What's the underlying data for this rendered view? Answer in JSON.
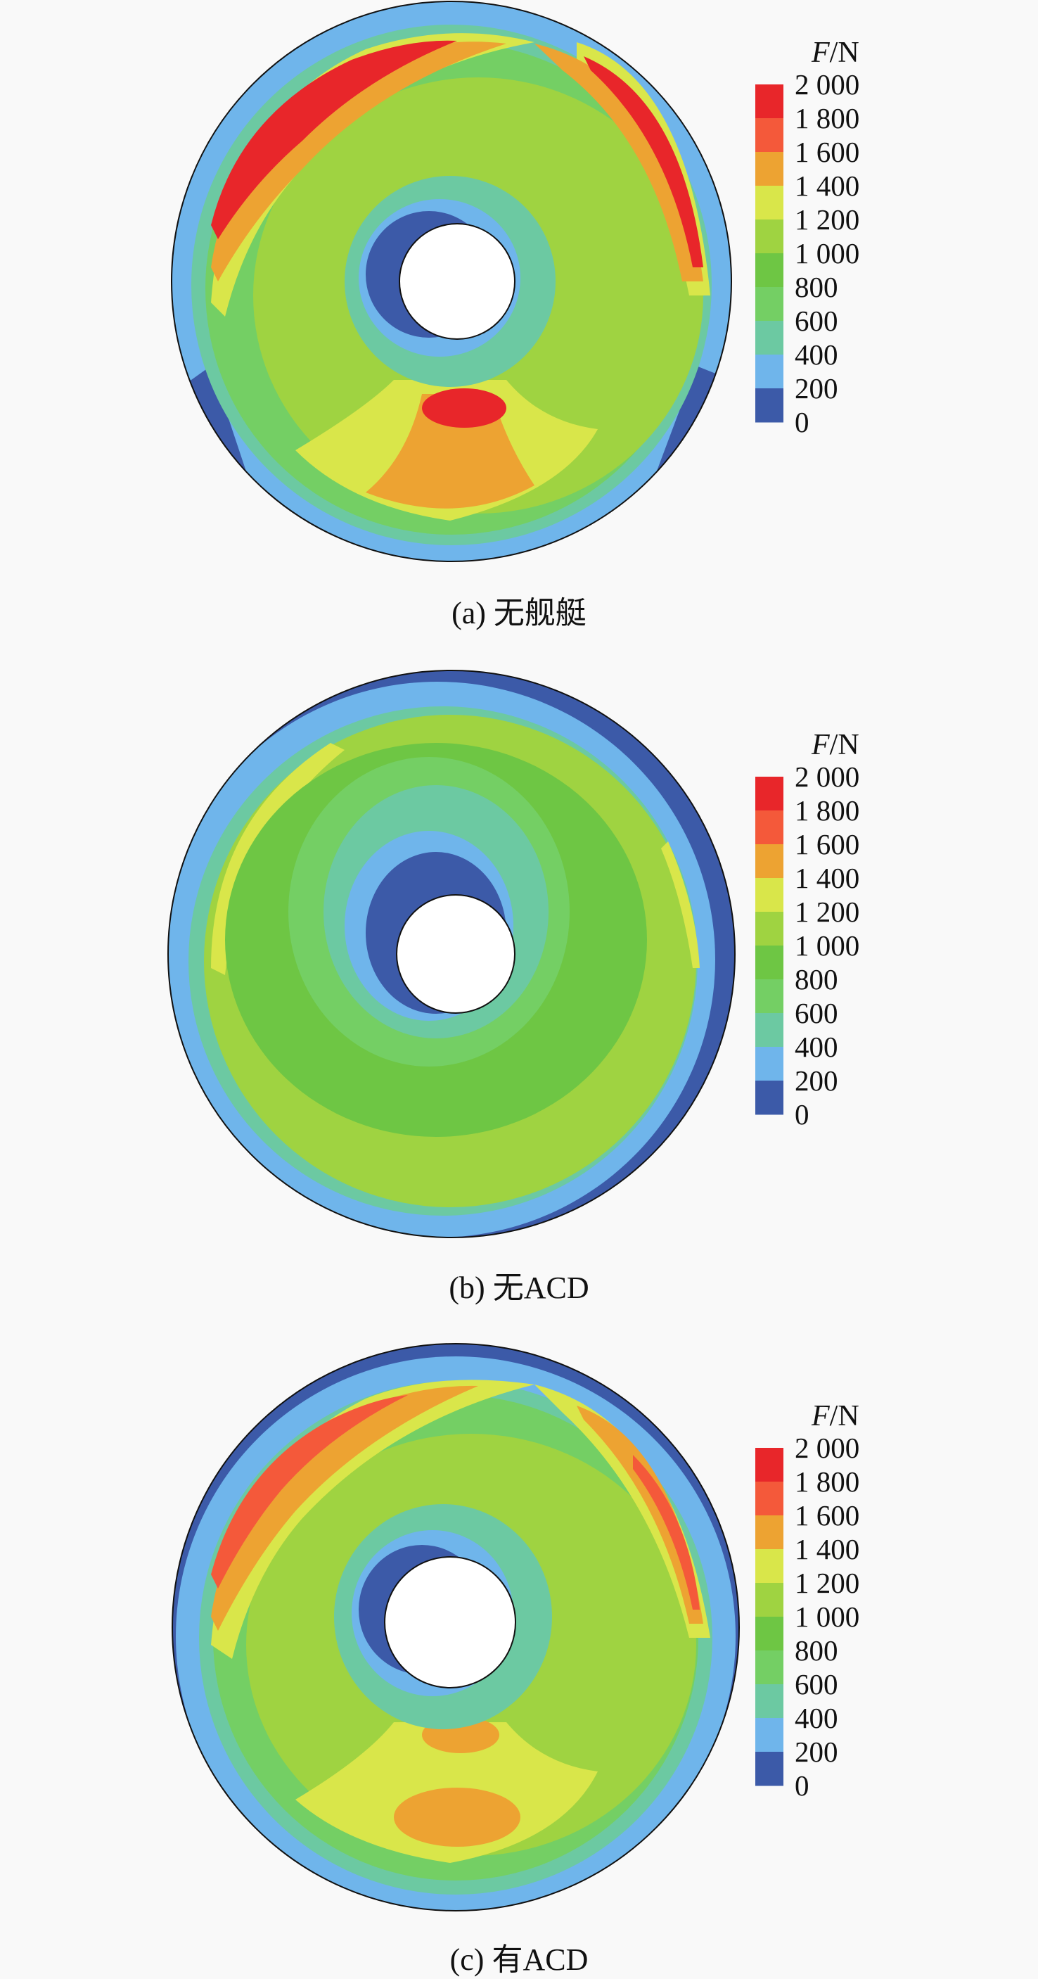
{
  "colorbar": {
    "title_symbol": "F",
    "title_unit": "/N",
    "ticks": [
      "2 000",
      "1 800",
      "1 600",
      "1 400",
      "1 200",
      "1 000",
      "800",
      "600",
      "400",
      "200",
      "0"
    ],
    "colors": [
      "#e8262a",
      "#f4593a",
      "#eda332",
      "#d9e64a",
      "#9fd341",
      "#6ec644",
      "#74cf64",
      "#6cc9a2",
      "#6fb5eb",
      "#3c5aa8"
    ]
  },
  "chart_data": [
    {
      "type": "heatmap",
      "title": "(a) 无舰艇",
      "colorbar_label": "F/N",
      "levels": [
        0,
        200,
        400,
        600,
        800,
        1000,
        1200,
        1400,
        1600,
        1800,
        2000
      ],
      "regions": [
        {
          "zone": "outer rim",
          "level": 200
        },
        {
          "zone": "rim lower-left / lower-right",
          "level": 0
        },
        {
          "zone": "upper-left band",
          "level": 1800
        },
        {
          "zone": "upper-right band",
          "level": 1800
        },
        {
          "zone": "lower center peak",
          "level": 1800
        },
        {
          "zone": "lower center",
          "level": 1600
        },
        {
          "zone": "center hub vicinity",
          "level": 0
        },
        {
          "zone": "disk body",
          "level": 1000
        }
      ]
    },
    {
      "type": "heatmap",
      "title": "(b) 无ACD",
      "colorbar_label": "F/N",
      "levels": [
        0,
        200,
        400,
        600,
        800,
        1000,
        1200,
        1400,
        1600,
        1800,
        2000
      ],
      "regions": [
        {
          "zone": "outer rim",
          "level": 0
        },
        {
          "zone": "rim band",
          "level": 200
        },
        {
          "zone": "center hub vicinity",
          "level": 0
        },
        {
          "zone": "disk body",
          "level": 1000
        },
        {
          "zone": "upper-left edge",
          "level": 1400
        }
      ]
    },
    {
      "type": "heatmap",
      "title": "(c) 有ACD",
      "colorbar_label": "F/N",
      "levels": [
        0,
        200,
        400,
        600,
        800,
        1000,
        1200,
        1400,
        1600,
        1800,
        2000
      ],
      "regions": [
        {
          "zone": "outer rim",
          "level": 200
        },
        {
          "zone": "rim top",
          "level": 0
        },
        {
          "zone": "upper-left band",
          "level": 1800
        },
        {
          "zone": "upper-right band",
          "level": 1600
        },
        {
          "zone": "lower center",
          "level": 1600
        },
        {
          "zone": "center hub vicinity",
          "level": 0
        },
        {
          "zone": "disk body",
          "level": 1000
        }
      ]
    }
  ]
}
